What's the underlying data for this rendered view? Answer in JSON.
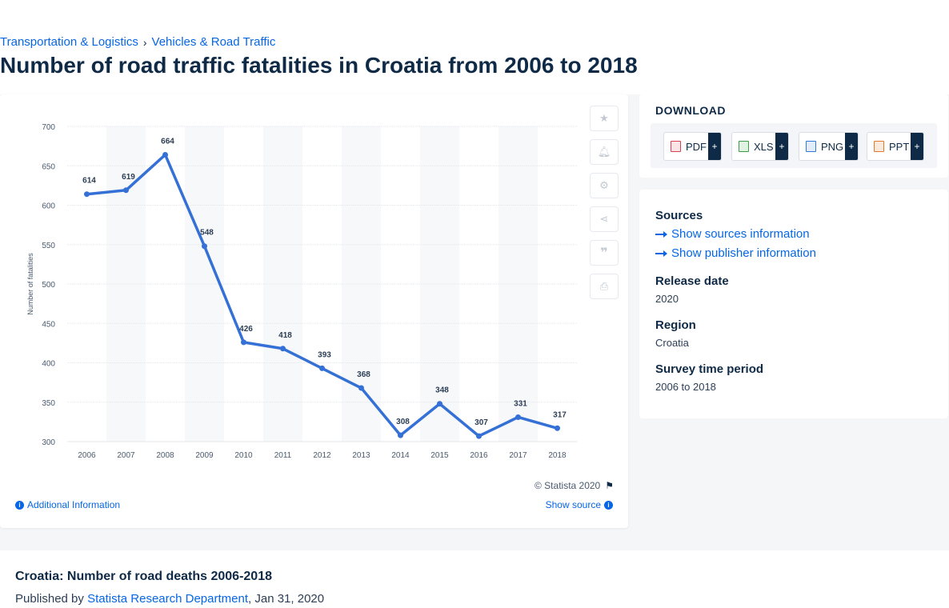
{
  "breadcrumb": {
    "item1": "Transportation & Logistics",
    "separator": "›",
    "item2": "Vehicles & Road Traffic"
  },
  "page_title": "Number of road traffic fatalities in Croatia from 2006 to 2018",
  "chart_data": {
    "type": "line",
    "title": "",
    "xlabel": "",
    "ylabel": "Number of fatalities",
    "categories": [
      "2006",
      "2007",
      "2008",
      "2009",
      "2010",
      "2011",
      "2012",
      "2013",
      "2014",
      "2015",
      "2016",
      "2017",
      "2018"
    ],
    "series": [
      {
        "values": [
          614,
          619,
          664,
          548,
          426,
          418,
          393,
          368,
          308,
          348,
          307,
          331,
          317
        ]
      }
    ],
    "yticks": [
      300,
      350,
      400,
      450,
      500,
      550,
      600,
      650,
      700
    ],
    "ylim": [
      300,
      700
    ],
    "grid": true,
    "data_labels": true,
    "line_color": "#3470d6"
  },
  "chart_footer": {
    "copyright": "© Statista 2020",
    "additional_info": "Additional Information",
    "show_source": "Show source"
  },
  "download": {
    "title": "DOWNLOAD",
    "buttons": [
      {
        "label": "PDF",
        "plus": "+",
        "color": "#d9434f"
      },
      {
        "label": "XLS",
        "plus": "+",
        "color": "#3c9b48"
      },
      {
        "label": "PNG",
        "plus": "+",
        "color": "#2f7bd6"
      },
      {
        "label": "PPT",
        "plus": "+",
        "color": "#e07a2e"
      }
    ]
  },
  "info": {
    "sources_label": "Sources",
    "show_sources": "Show sources information",
    "show_publisher": "Show publisher information",
    "release_label": "Release date",
    "release_value": "2020",
    "region_label": "Region",
    "region_value": "Croatia",
    "survey_label": "Survey time period",
    "survey_value": "2006 to 2018"
  },
  "bottom": {
    "heading": "Croatia: Number of road deaths 2006-2018",
    "published_by": "Published by",
    "publisher": "Statista Research Department",
    "date": ", Jan 31, 2020"
  },
  "tools": [
    "star-icon",
    "bell-icon",
    "gear-icon",
    "share-icon",
    "quote-icon",
    "print-icon"
  ]
}
